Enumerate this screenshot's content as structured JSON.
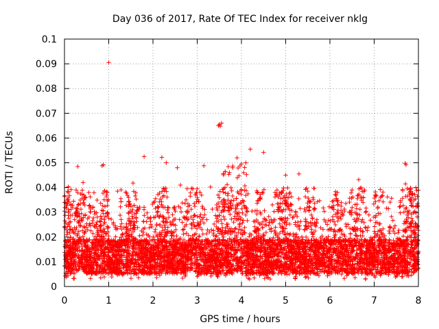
{
  "chart_data": {
    "type": "scatter",
    "title": "Day 036 of 2017, Rate Of TEC Index for receiver nklg",
    "xlabel": "GPS time / hours",
    "ylabel": "ROTI / TECUs",
    "xlim": [
      0,
      8
    ],
    "ylim": [
      0,
      0.1
    ],
    "x_ticks": [
      "0",
      "1",
      "2",
      "3",
      "4",
      "5",
      "6",
      "7",
      "8"
    ],
    "y_ticks": [
      "0",
      "0.01",
      "0.02",
      "0.03",
      "0.04",
      "0.05",
      "0.06",
      "0.07",
      "0.08",
      "0.09",
      "0.1"
    ],
    "grid": true,
    "marker": "+",
    "series": [
      {
        "name": "ROTI",
        "color": "#ff0000",
        "points": [
          [
            1.0,
            0.0905
          ],
          [
            3.5,
            0.0655
          ],
          [
            3.52,
            0.0648
          ],
          [
            3.48,
            0.065
          ],
          [
            3.55,
            0.066
          ],
          [
            1.8,
            0.0525
          ],
          [
            2.2,
            0.0522
          ],
          [
            2.3,
            0.05
          ],
          [
            4.2,
            0.0555
          ],
          [
            4.5,
            0.0542
          ],
          [
            3.9,
            0.052
          ],
          [
            4.1,
            0.05
          ],
          [
            7.7,
            0.0498
          ],
          [
            7.72,
            0.0492
          ],
          [
            0.3,
            0.0485
          ],
          [
            0.85,
            0.0488
          ],
          [
            0.88,
            0.0492
          ],
          [
            3.15,
            0.0488
          ],
          [
            3.8,
            0.048
          ],
          [
            4.05,
            0.046
          ],
          [
            5.0,
            0.045
          ],
          [
            5.3,
            0.0455
          ],
          [
            2.55,
            0.048
          ],
          [
            6.65,
            0.0432
          ],
          [
            7.82,
            0.0398
          ],
          [
            1.55,
            0.0418
          ],
          [
            2.62,
            0.041
          ],
          [
            3.0,
            0.0395
          ],
          [
            3.3,
            0.0402
          ],
          [
            4.95,
            0.0398
          ],
          [
            5.5,
            0.0385
          ],
          [
            6.12,
            0.0372
          ],
          [
            7.05,
            0.0368
          ],
          [
            7.3,
            0.0362
          ],
          [
            0.55,
            0.038
          ],
          [
            1.2,
            0.0385
          ],
          [
            0.42,
            0.042
          ],
          [
            0.95,
            0.037
          ]
        ]
      }
    ]
  }
}
